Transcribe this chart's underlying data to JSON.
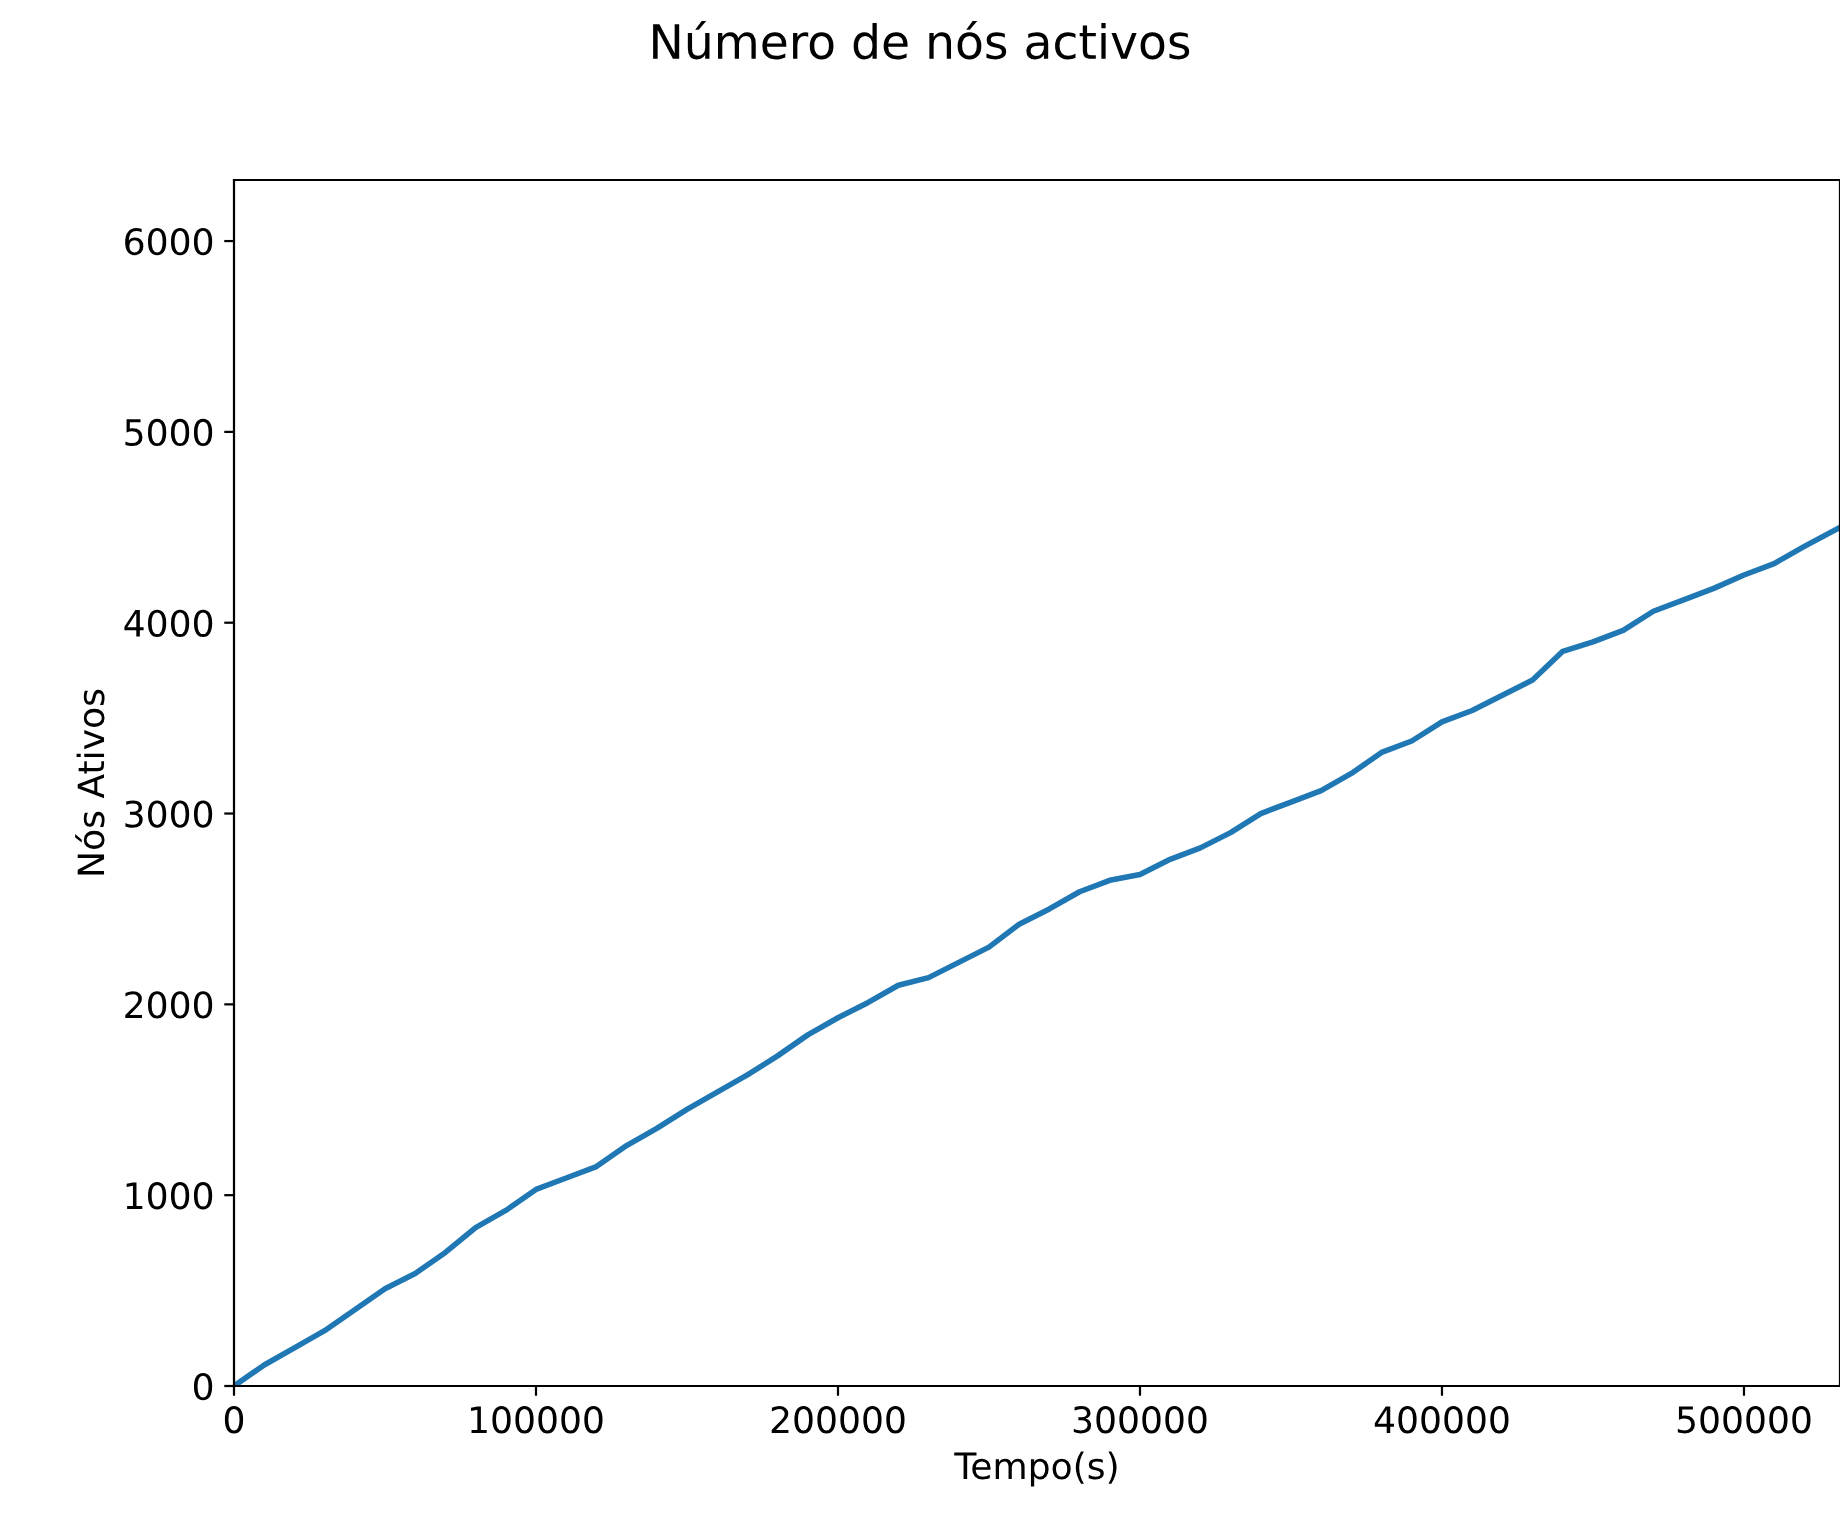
{
  "chart_data": {
    "type": "line",
    "title": "Número de nós activos",
    "xlabel": "Tempo(s)",
    "ylabel": "Nós Ativos",
    "x": [
      0,
      10000,
      20000,
      30000,
      40000,
      50000,
      60000,
      70000,
      80000,
      90000,
      100000,
      110000,
      120000,
      130000,
      140000,
      150000,
      160000,
      170000,
      180000,
      190000,
      200000,
      210000,
      220000,
      230000,
      240000,
      250000,
      260000,
      270000,
      280000,
      290000,
      300000,
      310000,
      320000,
      330000,
      340000,
      350000,
      360000,
      370000,
      380000,
      390000,
      400000,
      410000,
      420000,
      430000,
      440000,
      450000,
      460000,
      470000,
      480000,
      490000,
      500000,
      510000,
      520000,
      531800
    ],
    "series": [
      {
        "color": "#1f77b4",
        "values": [
          0,
          110,
          200,
          290,
          400,
          510,
          590,
          700,
          830,
          920,
          1030,
          1090,
          1150,
          1260,
          1350,
          1450,
          1540,
          1630,
          1730,
          1840,
          1930,
          2010,
          2100,
          2140,
          2220,
          2300,
          2420,
          2500,
          2590,
          2650,
          2680,
          2760,
          2820,
          2900,
          3000,
          3060,
          3120,
          3210,
          3320,
          3380,
          3480,
          3540,
          3620,
          3700,
          3850,
          3900,
          3960,
          4060,
          4120,
          4180,
          4250,
          4310,
          4400,
          4500
        ]
      }
    ],
    "xlim": [
      0,
      531800
    ],
    "ylim": [
      0,
      6320
    ],
    "xticks": [
      0,
      100000,
      200000,
      300000,
      400000,
      500000
    ],
    "yticks": [
      0,
      1000,
      2000,
      3000,
      4000,
      5000,
      6000
    ],
    "grid": false,
    "legend": false
  }
}
